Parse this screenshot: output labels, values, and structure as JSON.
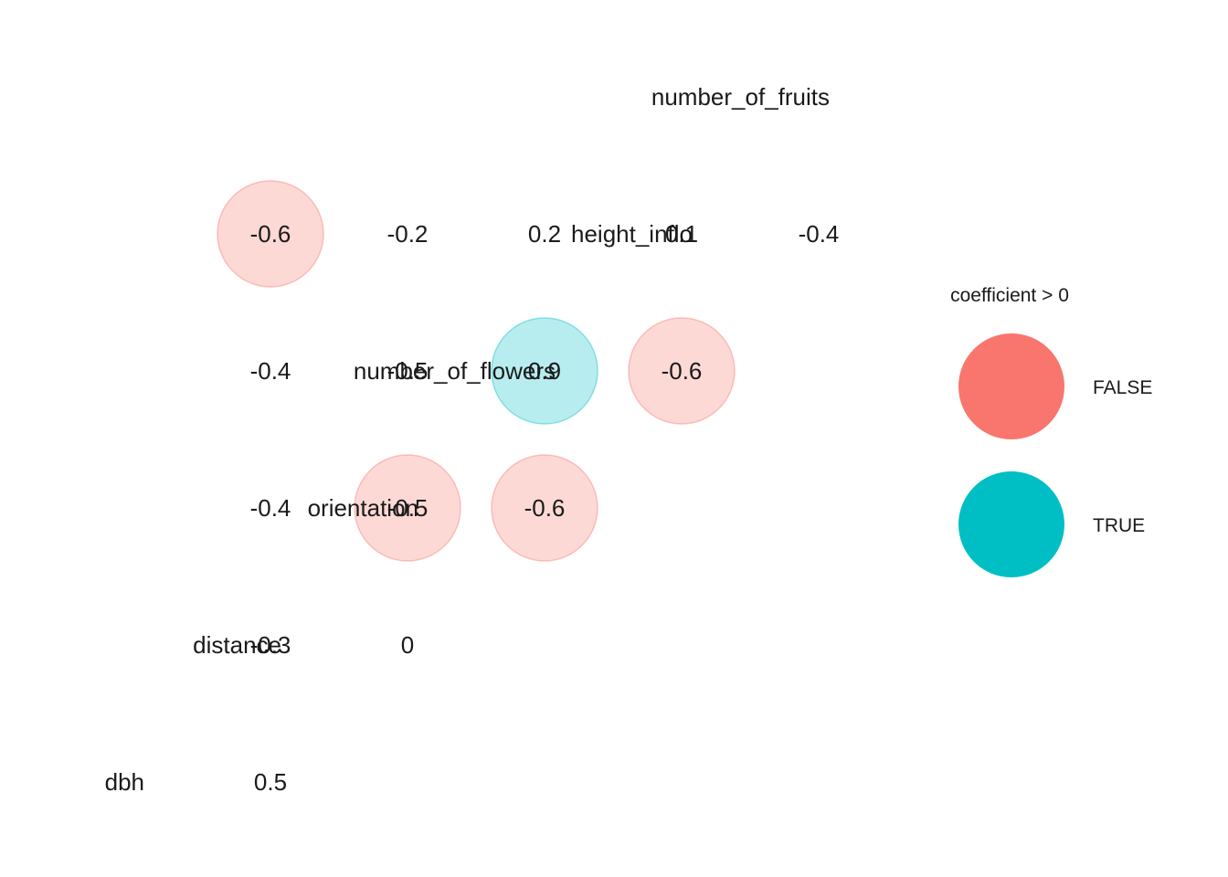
{
  "colors": {
    "false": "#F8766D",
    "true": "#00BFC4"
  },
  "chart_data": {
    "type": "heatmap",
    "title": "",
    "variables": [
      "dbh",
      "distance",
      "orientation",
      "number_of_flowers",
      "height_inflo",
      "number_of_fruits"
    ],
    "cells": [
      {
        "row": "distance",
        "col": "dbh",
        "value": 0.5,
        "significant": false
      },
      {
        "row": "orientation",
        "col": "dbh",
        "value": -0.3,
        "significant": false
      },
      {
        "row": "orientation",
        "col": "distance",
        "value": 0,
        "significant": false
      },
      {
        "row": "number_of_flowers",
        "col": "dbh",
        "value": -0.4,
        "significant": false
      },
      {
        "row": "number_of_flowers",
        "col": "distance",
        "value": -0.5,
        "significant": true
      },
      {
        "row": "number_of_flowers",
        "col": "orientation",
        "value": -0.6,
        "significant": true
      },
      {
        "row": "height_inflo",
        "col": "dbh",
        "value": -0.4,
        "significant": false
      },
      {
        "row": "height_inflo",
        "col": "distance",
        "value": -0.5,
        "significant": false
      },
      {
        "row": "height_inflo",
        "col": "orientation",
        "value": 0.9,
        "significant": true
      },
      {
        "row": "height_inflo",
        "col": "number_of_flowers",
        "value": -0.6,
        "significant": true
      },
      {
        "row": "number_of_fruits",
        "col": "dbh",
        "value": -0.6,
        "significant": true
      },
      {
        "row": "number_of_fruits",
        "col": "distance",
        "value": -0.2,
        "significant": false
      },
      {
        "row": "number_of_fruits",
        "col": "orientation",
        "value": 0.2,
        "significant": false
      },
      {
        "row": "number_of_fruits",
        "col": "number_of_flowers",
        "value": 0.1,
        "significant": false
      },
      {
        "row": "number_of_fruits",
        "col": "height_inflo",
        "value": -0.4,
        "significant": false
      }
    ],
    "legend": {
      "title": "coefficient > 0",
      "position": "right",
      "items": [
        {
          "label": "FALSE",
          "color": "#F8766D"
        },
        {
          "label": "TRUE",
          "color": "#00BFC4"
        }
      ]
    }
  }
}
